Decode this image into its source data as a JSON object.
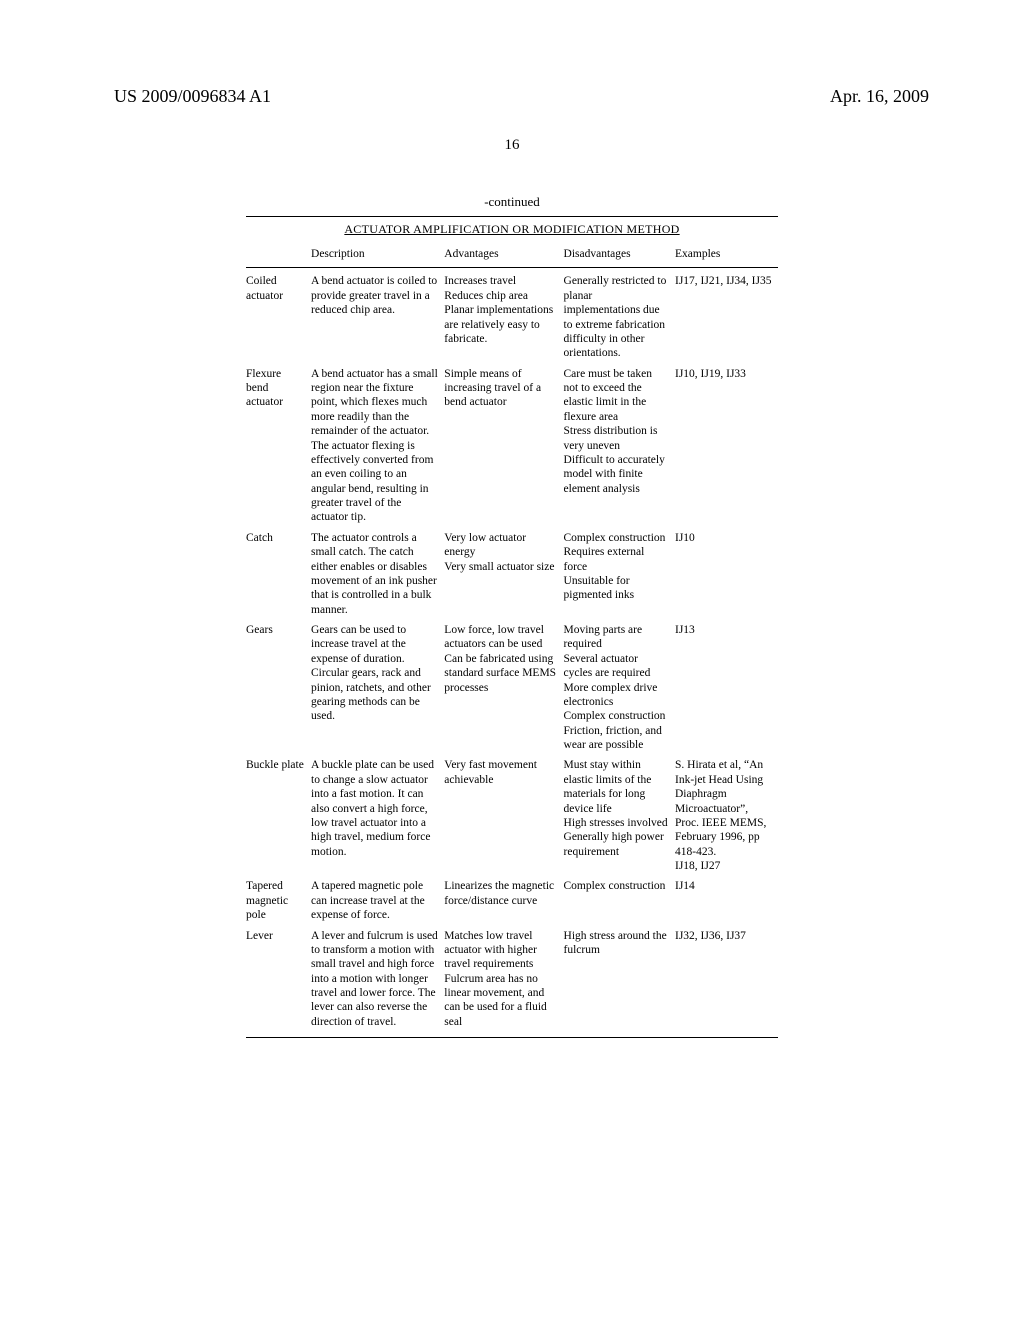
{
  "header": {
    "pub_number": "US 2009/0096834 A1",
    "date": "Apr. 16, 2009",
    "page": "16"
  },
  "table": {
    "continued": "-continued",
    "title": "ACTUATOR AMPLIFICATION OR MODIFICATION METHOD",
    "columns": [
      "",
      "Description",
      "Advantages",
      "Disadvantages",
      "Examples"
    ],
    "rows": [
      {
        "name": "Coiled actuator",
        "description": "A bend actuator is coiled to provide greater travel in a reduced chip area.",
        "advantages": "Increases travel\nReduces chip area\nPlanar implementations are relatively easy to fabricate.",
        "disadvantages": "Generally restricted to planar implementations due to extreme fabrication difficulty in other orientations.",
        "examples": "IJ17, IJ21, IJ34, IJ35"
      },
      {
        "name": "Flexure bend actuator",
        "description": "A bend actuator has a small region near the fixture point, which flexes much more readily than the remainder of the actuator. The actuator flexing is effectively converted from an even coiling to an angular bend, resulting in greater travel of the actuator tip.",
        "advantages": "Simple means of increasing travel of a bend actuator",
        "disadvantages": "Care must be taken not to exceed the elastic limit in the flexure area\nStress distribution is very uneven\nDifficult to accurately model with finite element analysis",
        "examples": "IJ10, IJ19, IJ33"
      },
      {
        "name": "Catch",
        "description": "The actuator controls a small catch. The catch either enables or disables movement of an ink pusher that is controlled in a bulk manner.",
        "advantages": "Very low actuator energy\nVery small actuator size",
        "disadvantages": "Complex construction\nRequires external force\nUnsuitable for pigmented inks",
        "examples": "IJ10"
      },
      {
        "name": "Gears",
        "description": "Gears can be used to increase travel at the expense of duration. Circular gears, rack and pinion, ratchets, and other gearing methods can be used.",
        "advantages": "Low force, low travel actuators can be used\nCan be fabricated using standard surface MEMS processes",
        "disadvantages": "Moving parts are required\nSeveral actuator cycles are required\nMore complex drive electronics\nComplex construction\nFriction, friction, and wear are possible",
        "examples": "IJ13"
      },
      {
        "name": "Buckle plate",
        "description": "A buckle plate can be used to change a slow actuator into a fast motion. It can also convert a high force, low travel actuator into a high travel, medium force motion.",
        "advantages": "Very fast movement achievable",
        "disadvantages": "Must stay within elastic limits of the materials for long device life\nHigh stresses involved\nGenerally high power requirement",
        "examples": "S. Hirata et al, “An Ink-jet Head Using Diaphragm Microactuator”, Proc. IEEE MEMS, February 1996, pp 418-423.\nIJ18, IJ27"
      },
      {
        "name": "Tapered magnetic pole",
        "description": "A tapered magnetic pole can increase travel at the expense of force.",
        "advantages": "Linearizes the magnetic force/distance curve",
        "disadvantages": "Complex construction",
        "examples": "IJ14"
      },
      {
        "name": "Lever",
        "description": "A lever and fulcrum is used to transform a motion with small travel and high force into a motion with longer travel and lower force. The lever can also reverse the direction of travel.",
        "advantages": "Matches low travel actuator with higher travel requirements\nFulcrum area has no linear movement, and can be used for a fluid seal",
        "disadvantages": "High stress around the fulcrum",
        "examples": "IJ32, IJ36, IJ37"
      }
    ]
  }
}
